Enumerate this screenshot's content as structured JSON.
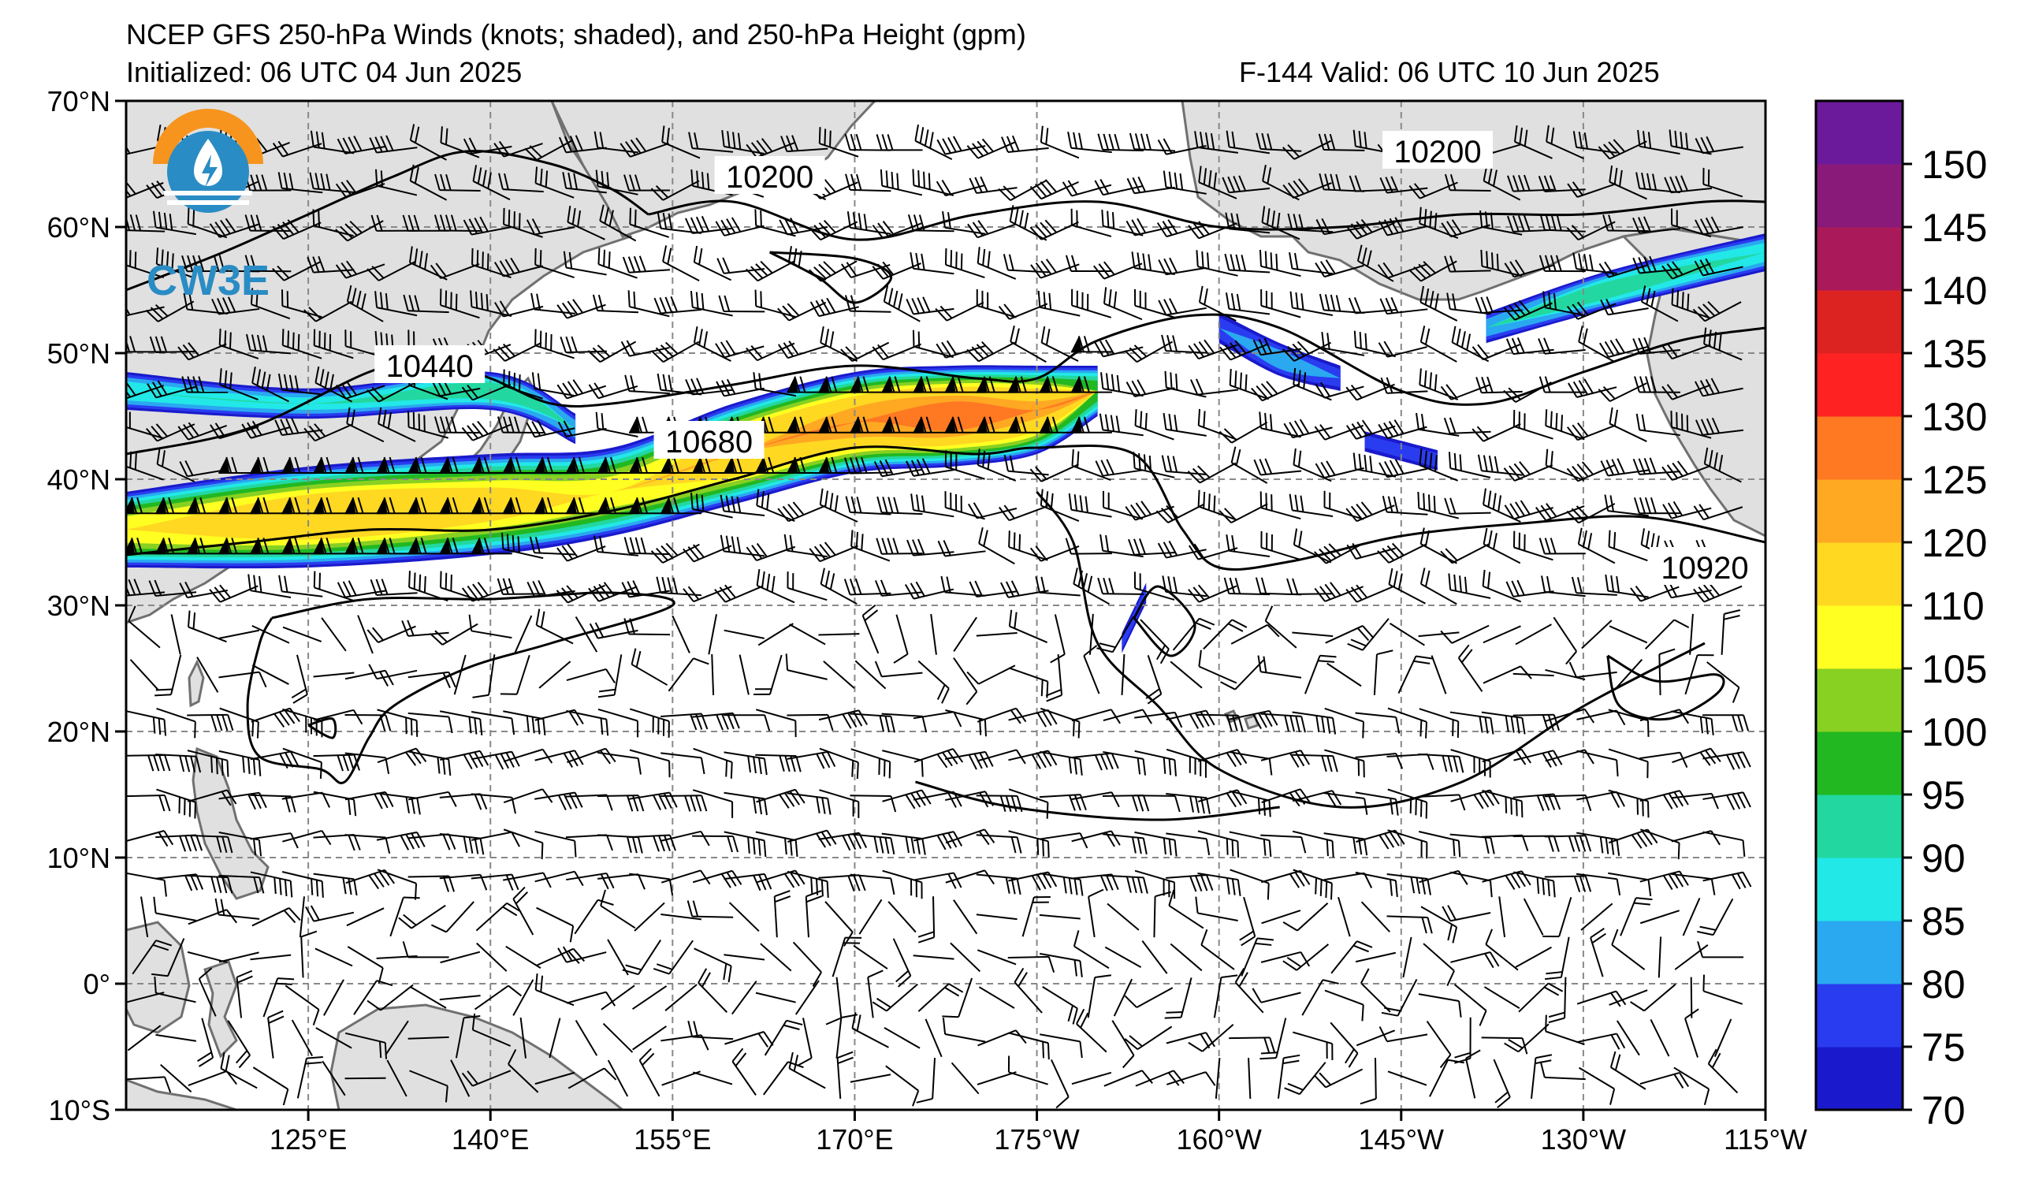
{
  "header": {
    "title": "NCEP GFS 250-hPa Winds (knots; shaded), and 250-hPa Height (gpm)",
    "init": "Initialized: 06 UTC 04 Jun 2025",
    "valid": "F-144  Valid: 06 UTC 10 Jun 2025"
  },
  "logo": {
    "text": "CW3E",
    "colors": {
      "sun": "#f7941d",
      "drop": "#2a8cc4",
      "text": "#2a8cc4"
    }
  },
  "map": {
    "lon_range": [
      110,
      245
    ],
    "lat_range": [
      -10,
      70
    ],
    "lat_ticks": [
      {
        "lat": 70,
        "label": "70°N"
      },
      {
        "lat": 60,
        "label": "60°N"
      },
      {
        "lat": 50,
        "label": "50°N"
      },
      {
        "lat": 40,
        "label": "40°N"
      },
      {
        "lat": 30,
        "label": "30°N"
      },
      {
        "lat": 20,
        "label": "20°N"
      },
      {
        "lat": 10,
        "label": "10°N"
      },
      {
        "lat": 0,
        "label": "0°"
      },
      {
        "lat": -10,
        "label": "10°S"
      }
    ],
    "lon_ticks": [
      {
        "lon": 125,
        "label": "125°E"
      },
      {
        "lon": 140,
        "label": "140°E"
      },
      {
        "lon": 155,
        "label": "155°E"
      },
      {
        "lon": 170,
        "label": "170°E"
      },
      {
        "lon": 185,
        "label": "175°W"
      },
      {
        "lon": 200,
        "label": "160°W"
      },
      {
        "lon": 215,
        "label": "145°W"
      },
      {
        "lon": 230,
        "label": "130°W"
      },
      {
        "lon": 245,
        "label": "115°W"
      }
    ],
    "contour_labels": [
      {
        "text": "10200",
        "lon": 163,
        "lat": 64
      },
      {
        "text": "10200",
        "lon": 218,
        "lat": 66
      },
      {
        "text": "10440",
        "lon": 135,
        "lat": 49
      },
      {
        "text": "10680",
        "lon": 158,
        "lat": 43
      },
      {
        "text": "10920",
        "lon": 240,
        "lat": 33
      }
    ],
    "colors": {
      "land": "#e0e0e0",
      "coast": "#707070",
      "grid": "#888888",
      "contour": "#000000"
    }
  },
  "colorbar": {
    "ticks": [
      "70",
      "75",
      "80",
      "85",
      "90",
      "95",
      "100",
      "105",
      "110",
      "120",
      "125",
      "130",
      "135",
      "140",
      "145",
      "150"
    ],
    "colors": [
      "#1a1acc",
      "#2a3cf0",
      "#2aa8f0",
      "#22e8e8",
      "#22d8a0",
      "#22b822",
      "#88d022",
      "#ffff22",
      "#ffd822",
      "#ffa822",
      "#ff7822",
      "#ff2222",
      "#dd2222",
      "#aa1a5a",
      "#8a1a7a",
      "#6a1a9a"
    ]
  },
  "jets": [
    {
      "name": "main-jet",
      "core": [
        [
          110,
          36
        ],
        [
          125,
          37
        ],
        [
          140,
          38
        ],
        [
          150,
          39
        ],
        [
          160,
          42
        ],
        [
          170,
          44.5
        ],
        [
          178,
          45
        ],
        [
          185,
          45.5
        ],
        [
          190,
          47
        ]
      ],
      "halfwidth": [
        3,
        4,
        4,
        3.5,
        4,
        4,
        4,
        3.5,
        2
      ],
      "peak": [
        110,
        120,
        115,
        110,
        120,
        125,
        130,
        122,
        100
      ]
    },
    {
      "name": "north-jet-a",
      "core": [
        [
          110,
          47
        ],
        [
          125,
          46
        ],
        [
          140,
          47
        ],
        [
          147,
          44
        ]
      ],
      "halfwidth": [
        1.5,
        1.2,
        1.5,
        1.2
      ],
      "peak": [
        90,
        88,
        95,
        85
      ]
    },
    {
      "name": "alaska-jet",
      "core": [
        [
          222,
          52
        ],
        [
          232,
          55
        ],
        [
          245,
          58
        ]
      ],
      "halfwidth": [
        1.2,
        1.5,
        1.5
      ],
      "peak": [
        85,
        95,
        90
      ]
    },
    {
      "name": "gulf-jet",
      "core": [
        [
          200,
          52
        ],
        [
          205,
          49.5
        ],
        [
          210,
          48
        ]
      ],
      "halfwidth": [
        1.2,
        1.3,
        1.0
      ],
      "peak": [
        80,
        85,
        80
      ]
    },
    {
      "name": "small-jet-a",
      "core": [
        [
          212,
          43
        ],
        [
          218,
          41.5
        ]
      ],
      "halfwidth": [
        0.8,
        0.8
      ],
      "peak": [
        78,
        80
      ]
    },
    {
      "name": "cutoff-jet",
      "core": [
        [
          192,
          27
        ],
        [
          194,
          31
        ]
      ],
      "halfwidth": [
        0.8,
        0.8
      ],
      "peak": [
        78,
        78
      ]
    }
  ],
  "contours": [
    [
      [
        110,
        55
      ],
      [
        118,
        58
      ],
      [
        125,
        61
      ],
      [
        132,
        64
      ],
      [
        138,
        66
      ],
      [
        145,
        65
      ],
      [
        150,
        63
      ],
      [
        153,
        61
      ]
    ],
    [
      [
        153,
        61
      ],
      [
        160,
        62
      ],
      [
        170,
        59
      ],
      [
        180,
        61
      ],
      [
        190,
        62
      ],
      [
        200,
        60
      ],
      [
        210,
        60
      ],
      [
        220,
        61
      ],
      [
        230,
        61
      ],
      [
        240,
        62
      ],
      [
        245,
        62
      ]
    ],
    [
      [
        110,
        42
      ],
      [
        120,
        44
      ],
      [
        130,
        48.5
      ],
      [
        135,
        49.5
      ],
      [
        140,
        48
      ],
      [
        145,
        46
      ],
      [
        150,
        46
      ],
      [
        160,
        47.5
      ],
      [
        170,
        49
      ],
      [
        180,
        48
      ],
      [
        185,
        48
      ],
      [
        190,
        51
      ],
      [
        198,
        53
      ],
      [
        205,
        52
      ],
      [
        215,
        47
      ],
      [
        222,
        46
      ],
      [
        230,
        48.5
      ],
      [
        238,
        51
      ],
      [
        245,
        52
      ]
    ],
    [
      [
        110,
        34
      ],
      [
        120,
        35
      ],
      [
        130,
        36
      ],
      [
        140,
        36
      ],
      [
        150,
        37.5
      ],
      [
        160,
        40
      ],
      [
        170,
        42.5
      ],
      [
        180,
        42
      ],
      [
        185,
        42.5
      ],
      [
        193,
        42
      ],
      [
        197,
        36
      ],
      [
        200,
        33
      ],
      [
        206,
        33.5
      ],
      [
        215,
        35.5
      ],
      [
        225,
        36.5
      ],
      [
        235,
        37
      ],
      [
        245,
        35
      ]
    ],
    [
      [
        122,
        29
      ],
      [
        130,
        30.5
      ],
      [
        140,
        30.5
      ],
      [
        150,
        31
      ],
      [
        155,
        30
      ],
      [
        145,
        27
      ],
      [
        138,
        25
      ],
      [
        132,
        22
      ],
      [
        130,
        19.5
      ],
      [
        128,
        16
      ],
      [
        126,
        17
      ],
      [
        121,
        18
      ],
      [
        120,
        22
      ],
      [
        121,
        27
      ],
      [
        122,
        29
      ]
    ],
    [
      [
        185,
        39
      ],
      [
        188,
        35
      ],
      [
        190,
        27
      ],
      [
        195,
        22
      ],
      [
        200,
        17
      ],
      [
        210,
        14
      ],
      [
        220,
        16
      ],
      [
        230,
        22
      ],
      [
        240,
        27
      ]
    ],
    [
      [
        175,
        16
      ],
      [
        183,
        14
      ],
      [
        195,
        13
      ],
      [
        205,
        14
      ]
    ],
    [
      [
        232,
        26
      ],
      [
        236,
        24
      ],
      [
        241,
        24.5
      ],
      [
        241,
        23
      ],
      [
        237,
        21
      ],
      [
        233,
        22
      ],
      [
        232,
        26
      ]
    ],
    [
      [
        163,
        58
      ],
      [
        167,
        56
      ],
      [
        170,
        54
      ],
      [
        173,
        56
      ],
      [
        170,
        57.5
      ],
      [
        163,
        58
      ]
    ],
    [
      [
        193,
        29
      ],
      [
        196,
        26
      ],
      [
        198,
        28.5
      ],
      [
        195,
        31.5
      ],
      [
        193,
        29
      ]
    ],
    [
      [
        125,
        20.5
      ],
      [
        127,
        21
      ],
      [
        127,
        19.5
      ],
      [
        125,
        20.5
      ]
    ]
  ]
}
